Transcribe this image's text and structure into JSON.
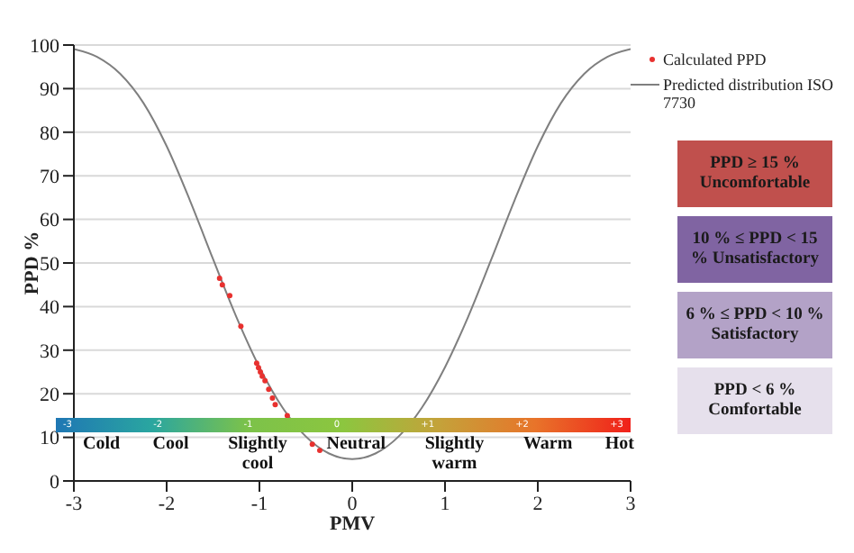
{
  "chart_data": [
    {
      "type": "line",
      "xlabel": "PMV",
      "ylabel": "PPD %",
      "xlim": [
        -3,
        3
      ],
      "xticks": [
        -3,
        -2,
        -1,
        0,
        1,
        2,
        3
      ],
      "ylim": [
        0,
        100
      ],
      "yticks": [
        0,
        10,
        20,
        30,
        40,
        50,
        60,
        70,
        80,
        90,
        100
      ],
      "grid": "y",
      "legend": "top right",
      "series": [
        {
          "name": "Calculated PPD",
          "type": "scatter",
          "color": "#e8312f",
          "marker": "circle",
          "x": [
            -1.43,
            -1.4,
            -1.32,
            -1.2,
            -1.03,
            -1.01,
            -0.99,
            -0.97,
            -0.94,
            -0.9,
            -0.86,
            -0.83,
            -0.7,
            -0.43,
            -0.35
          ],
          "values": [
            46.5,
            45,
            42.5,
            35.5,
            27,
            26,
            25,
            24,
            23,
            21,
            19,
            17.5,
            15,
            8.4,
            7
          ]
        },
        {
          "name": "Predicted distribution ISO 7730",
          "type": "line",
          "color": "#7f7f7f",
          "marker": "none",
          "line_style": "solid",
          "x": [
            -3,
            -2.75,
            -2.5,
            -2.25,
            -2,
            -1.75,
            -1.5,
            -1.25,
            -1,
            -0.75,
            -0.5,
            -0.25,
            0,
            0.25,
            0.5,
            0.75,
            1,
            1.25,
            1.5,
            1.75,
            2,
            2.25,
            2.5,
            2.75,
            3
          ],
          "values": [
            99.1,
            97.3,
            93.4,
            86.7,
            76.8,
            64.4,
            50.9,
            37.7,
            26.1,
            16.8,
            10.2,
            6.3,
            5,
            6.3,
            10.2,
            16.8,
            26.1,
            37.7,
            50.9,
            64.4,
            76.8,
            86.7,
            93.4,
            97.3,
            99.1
          ]
        }
      ],
      "annotations": [
        "-3",
        "-2",
        "-1",
        "0",
        "+1",
        "+2",
        "+3",
        "Cold",
        "Cool",
        "Slightly cool",
        "Neutral",
        "Slightly warm",
        "Warm",
        "Hot"
      ]
    },
    {
      "type": "other",
      "categories": [
        "PPD ≥ 15 % Uncomfortable",
        "10 % ≤ PPD < 15 % Unsatisfactory",
        "6 % ≤ PPD < 10 % Satisfactory",
        "PPD < 6 % Comfortable"
      ],
      "colors": [
        "#c0504d",
        "#8064a2",
        "#b3a2c7",
        "#e6e0ec"
      ]
    }
  ]
}
